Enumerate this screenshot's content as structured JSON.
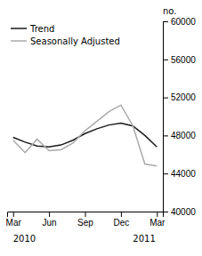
{
  "chart_data": {
    "type": "line",
    "categories": [
      "Mar",
      null,
      null,
      "Jun",
      null,
      null,
      "Sep",
      null,
      null,
      "Dec",
      null,
      null,
      "Mar"
    ],
    "series": [
      {
        "name": "Trend",
        "color": "#1a1a1a",
        "values": [
          47800,
          47300,
          46900,
          46800,
          47000,
          47500,
          48200,
          48700,
          49100,
          49300,
          49000,
          48000,
          46800
        ]
      },
      {
        "name": "Seasonally Adjusted",
        "color": "#aaaaaa",
        "values": [
          47500,
          46200,
          47600,
          46400,
          46500,
          47200,
          48500,
          49500,
          50500,
          51200,
          49000,
          45000,
          44800
        ]
      }
    ],
    "ylabel": "no.",
    "annotations": [
      {
        "text": "2010",
        "x": 0
      },
      {
        "text": "2011",
        "x": 10
      }
    ],
    "ylim": [
      40000,
      60000
    ],
    "yticks": [
      40000,
      44000,
      48000,
      52000,
      56000,
      60000
    ],
    "grid": false,
    "legend": "upper left"
  }
}
